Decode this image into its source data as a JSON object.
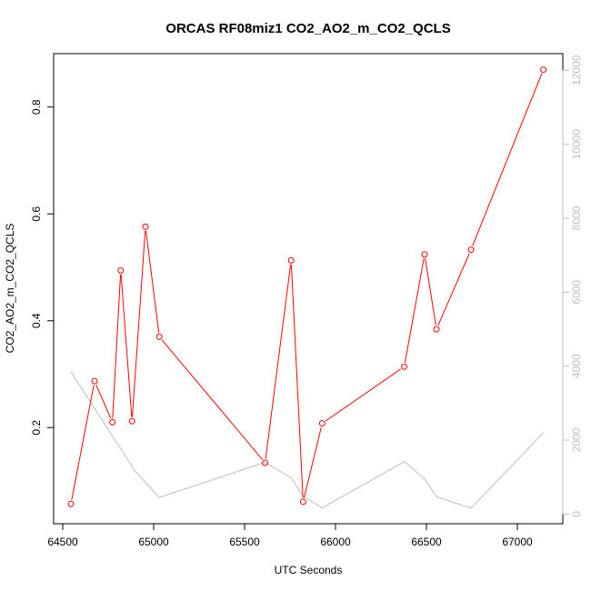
{
  "chart_data": {
    "type": "line",
    "title": "ORCAS RF08miz1 CO2_AO2_m_CO2_QCLS",
    "xlabel": "UTC Seconds",
    "ylabel": "CO2_AO2_m_CO2_QCLS",
    "xlim": [
      64450,
      67250
    ],
    "ylim": [
      0.02,
      0.9
    ],
    "y2lim": [
      -260,
      12450
    ],
    "x_ticks": [
      64500,
      65000,
      65500,
      66000,
      66500,
      67000
    ],
    "y_ticks": [
      0.2,
      0.4,
      0.6,
      0.8
    ],
    "y_tick_labels": [
      "0.2",
      "0.4",
      "0.6",
      "0.8"
    ],
    "y2_ticks": [
      0,
      2000,
      4000,
      6000,
      8000,
      10000,
      12000
    ],
    "grid": false,
    "series": [
      {
        "color": "#ff0000",
        "axis": "left",
        "markers": "open-circle",
        "x": [
          64545,
          64675,
          64773,
          64819,
          64881,
          64955,
          65031,
          65613,
          65756,
          65822,
          65927,
          66378,
          66490,
          66555,
          66745,
          67143
        ],
        "y": [
          0.057,
          0.287,
          0.21,
          0.494,
          0.212,
          0.576,
          0.37,
          0.134,
          0.513,
          0.061,
          0.208,
          0.314,
          0.524,
          0.384,
          0.533,
          0.87
        ]
      },
      {
        "color": "#bebebe",
        "axis": "right",
        "markers": "none",
        "x": [
          64545,
          64900,
          65031,
          65613,
          65756,
          65822,
          65927,
          66378,
          66490,
          66555,
          66745,
          67143
        ],
        "y": [
          3850,
          1150,
          450,
          1400,
          980,
          480,
          170,
          1420,
          950,
          470,
          160,
          2200
        ]
      }
    ]
  }
}
